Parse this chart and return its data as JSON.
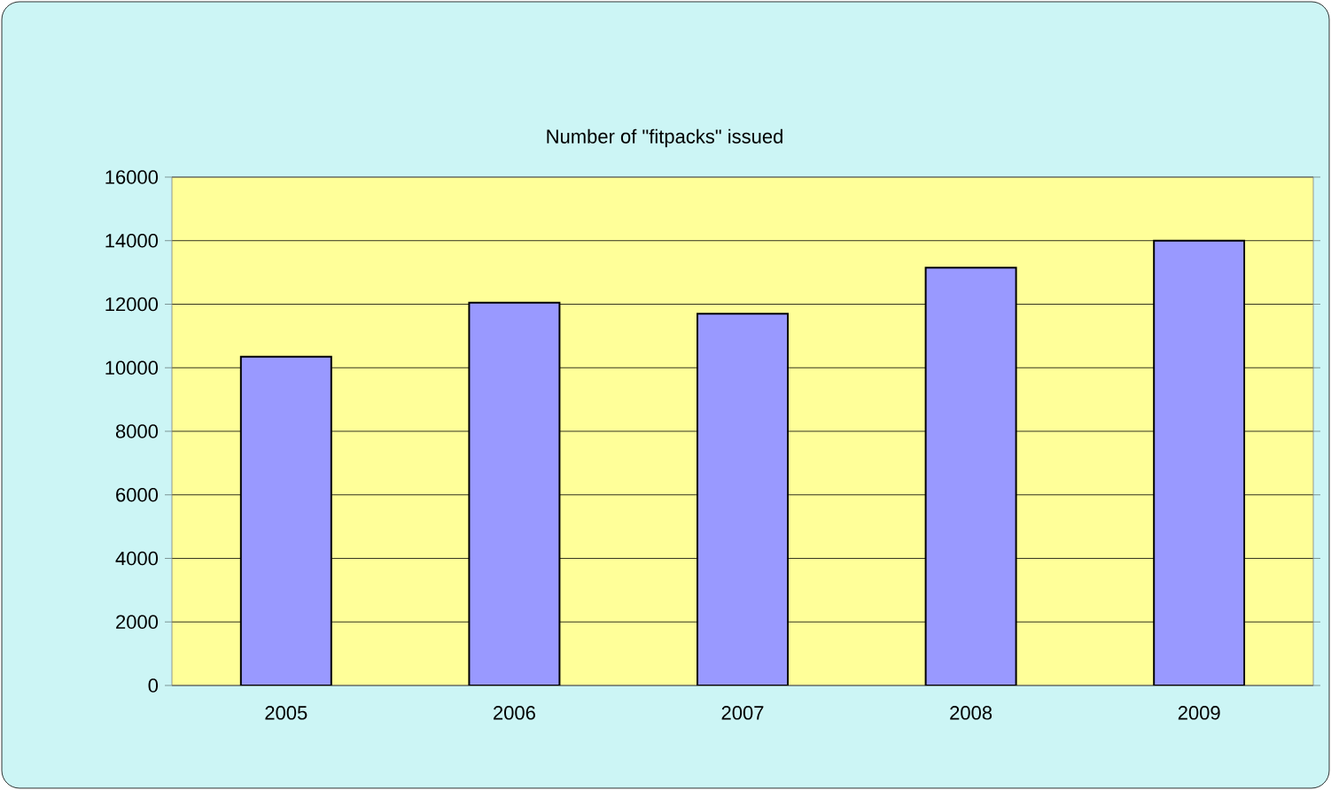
{
  "chart_data": {
    "type": "bar",
    "title": "Number of \"fitpacks\" issued",
    "categories": [
      "2005",
      "2006",
      "2007",
      "2008",
      "2009"
    ],
    "values": [
      10350,
      12050,
      11700,
      13150,
      14000
    ],
    "color": "#9999ff",
    "ylim": [
      0,
      16000
    ],
    "yticks": [
      0,
      2000,
      4000,
      6000,
      8000,
      10000,
      12000,
      14000,
      16000
    ],
    "grid": "y"
  }
}
